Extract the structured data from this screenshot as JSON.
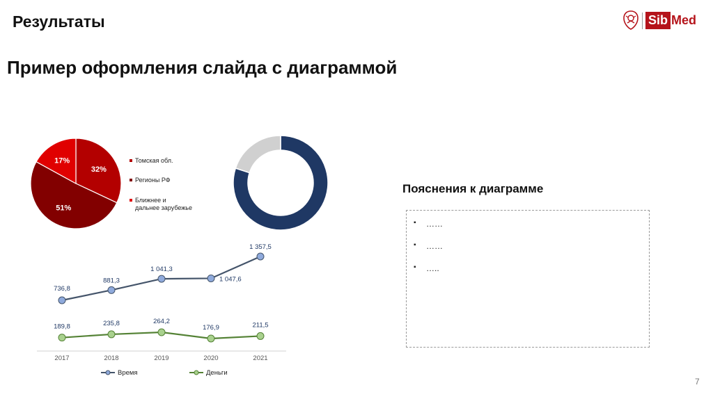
{
  "header": {
    "section_title": "Результаты",
    "slide_title": "Пример оформления слайда с диаграммой",
    "logo": {
      "part1": "Sib",
      "part2": "Med",
      "color": "#b5141b"
    }
  },
  "chart_data": [
    {
      "type": "pie",
      "title": "",
      "labels": [
        "Томская обл.",
        "Регионы РФ",
        "Ближнее и дальнее зарубежье"
      ],
      "values": [
        32,
        51,
        17
      ],
      "value_labels": [
        "32%",
        "51%",
        "17%"
      ],
      "colors": [
        "#b30000",
        "#820000",
        "#e00000"
      ],
      "legend_placement": "right"
    },
    {
      "type": "pie",
      "subtype": "donut",
      "title": "",
      "values": [
        80,
        20
      ],
      "colors": [
        "#1f3864",
        "#d0d0d0"
      ]
    },
    {
      "type": "line",
      "title": "",
      "categories": [
        "2017",
        "2018",
        "2019",
        "2020",
        "2021"
      ],
      "series": [
        {
          "name": "Время",
          "values": [
            736.8,
            881.3,
            1041.3,
            1047.6,
            1357.5
          ],
          "value_labels": [
            "736,8",
            "881,3",
            "1 041,3",
            "1 047,6",
            "1 357,5"
          ],
          "line_color": "#44546a",
          "marker_color": "#8faadc"
        },
        {
          "name": "Деньги",
          "values": [
            189.8,
            235.8,
            264.2,
            176.9,
            211.5
          ],
          "value_labels": [
            "189,8",
            "235,8",
            "264,2",
            "176,9",
            "211,5"
          ],
          "line_color": "#548235",
          "marker_color": "#a9d18e"
        }
      ],
      "grid": false,
      "legend_placement": "bottom"
    }
  ],
  "notes": {
    "title": "Пояснения к диаграмме",
    "items": [
      {
        "bullet": "▪",
        "text": "……"
      },
      {
        "bullet": "▪",
        "text": "……"
      },
      {
        "bullet": "▪",
        "text": "….."
      }
    ]
  },
  "footer": {
    "page_number": "7"
  }
}
